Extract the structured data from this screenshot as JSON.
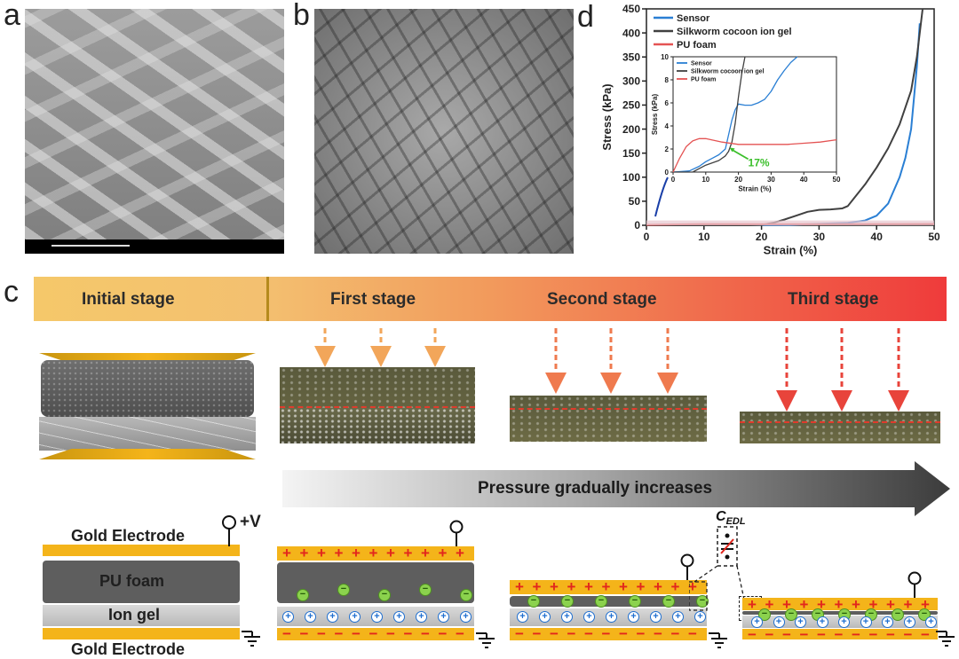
{
  "panels": {
    "a": "a",
    "b": "b",
    "c": "c",
    "d": "d"
  },
  "stages": [
    "Initial stage",
    "First stage",
    "Second stage",
    "Third stage"
  ],
  "pressure_label": "Pressure gradually increases",
  "layers": {
    "gold_top": "Gold Electrode",
    "pu_foam": "PU foam",
    "ion_gel": "Ion gel",
    "gold_bottom": "Gold Electrode",
    "voltage": "+V",
    "cedl_main": "C",
    "cedl_sub": "EDL"
  },
  "colors": {
    "sensor": "#2a7fd4",
    "silkworm": "#404040",
    "pu_foam": "#e45353",
    "gold": "#f4b41a",
    "charge": "#e2261d",
    "ion_pos": "#1f6fd0",
    "ion_neg": "#8bd24d",
    "annotation_green": "#3bbf2b"
  },
  "chart_data": {
    "type": "line",
    "xlabel": "Strain (%)",
    "ylabel": "Stress (kPa)",
    "xlim": [
      0,
      50
    ],
    "ylim": [
      0,
      450
    ],
    "xticks": [
      0,
      10,
      20,
      30,
      40,
      50
    ],
    "yticks": [
      0,
      50,
      100,
      150,
      200,
      250,
      300,
      350,
      400,
      450
    ],
    "legend": "top-left",
    "series": [
      {
        "name": "Sensor",
        "color": "#2a7fd4",
        "x": [
          0,
          10,
          20,
          25,
          30,
          35,
          38,
          40,
          42,
          44,
          45,
          46,
          47,
          47.5
        ],
        "y": [
          0,
          0.3,
          0.6,
          1,
          3,
          5,
          10,
          20,
          45,
          100,
          140,
          200,
          330,
          420
        ]
      },
      {
        "name": "Silkworm cocoon ion gel",
        "color": "#404040",
        "x": [
          0,
          18,
          20,
          22,
          24,
          26,
          28,
          30,
          32,
          34,
          35,
          36,
          38,
          40,
          42,
          44,
          46,
          47,
          48
        ],
        "y": [
          0,
          0,
          1,
          5,
          12,
          20,
          28,
          32,
          33,
          35,
          40,
          55,
          85,
          120,
          160,
          210,
          280,
          350,
          450
        ]
      },
      {
        "name": "PU foam",
        "color": "#e45353",
        "x": [
          0,
          10,
          20,
          30,
          40,
          50
        ],
        "y": [
          1,
          2.5,
          2.4,
          2.4,
          2.5,
          2.8
        ]
      }
    ],
    "inset": {
      "xlabel": "Strain (%)",
      "ylabel": "Stress (kPa)",
      "xlim": [
        0,
        50
      ],
      "ylim": [
        0,
        10
      ],
      "xticks": [
        0,
        10,
        20,
        30,
        40,
        50
      ],
      "yticks": [
        0,
        2,
        4,
        6,
        8,
        10
      ],
      "legend": "top-left",
      "annotation": "17%",
      "series": [
        {
          "name": "Sensor",
          "color": "#2a7fd4",
          "x": [
            0,
            5,
            8,
            10,
            12,
            14,
            16,
            18,
            19,
            20,
            22,
            24,
            26,
            28,
            30,
            32,
            34,
            36,
            38
          ],
          "y": [
            0,
            0.1,
            0.5,
            0.9,
            1.2,
            1.5,
            2.0,
            4.5,
            5.4,
            5.9,
            5.8,
            5.8,
            6.0,
            6.3,
            7.0,
            8.0,
            8.8,
            9.5,
            10
          ]
        },
        {
          "name": "Silkworm cocoon ion gel",
          "color": "#404040",
          "x": [
            0,
            6,
            8,
            10,
            12,
            14,
            16,
            17,
            18,
            19,
            20,
            21,
            22
          ],
          "y": [
            0,
            0,
            0.3,
            0.6,
            0.8,
            1.0,
            1.4,
            1.8,
            2.6,
            4.2,
            6.5,
            8.5,
            10
          ]
        },
        {
          "name": "PU foam",
          "color": "#e45353",
          "x": [
            0,
            2,
            4,
            6,
            8,
            10,
            15,
            20,
            25,
            30,
            35,
            40,
            45,
            50
          ],
          "y": [
            0,
            1.2,
            2.2,
            2.7,
            2.9,
            2.9,
            2.6,
            2.4,
            2.4,
            2.4,
            2.4,
            2.5,
            2.6,
            2.8
          ]
        }
      ]
    }
  }
}
